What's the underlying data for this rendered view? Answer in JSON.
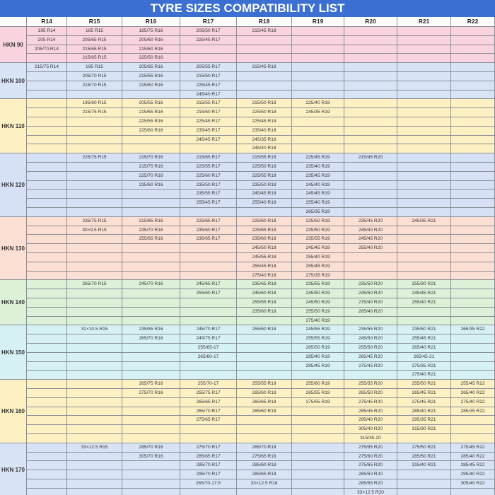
{
  "title": "TYRE SIZES COMPATIBILITY LIST",
  "columns": [
    "R14",
    "R15",
    "R16",
    "R17",
    "R18",
    "R19",
    "R20",
    "R21",
    "R22"
  ],
  "groups": [
    {
      "label": "HKN 90",
      "color": "#f9d4de",
      "columns": [
        [
          "195 R14",
          "205 R14",
          "205/70 R14"
        ],
        [
          "185 R15",
          "205/65 R15",
          "215/65 R15",
          "215/65 R15"
        ],
        [
          "185/75 R16",
          "205/60 R16",
          "215/60 R16",
          "225/50 R16"
        ],
        [
          "205/50 R17",
          "225/45 R17"
        ],
        [
          "215/45 R18"
        ],
        [],
        [],
        [],
        []
      ]
    },
    {
      "label": "HKN 100",
      "color": "#d8e4f5",
      "columns": [
        [
          "215/75 R14"
        ],
        [
          "195 R15",
          "205/70 R15",
          "215/70 R15"
        ],
        [
          "205/65 R16",
          "215/55 R16",
          "215/60 R16"
        ],
        [
          "205/55 R17",
          "215/50 R17",
          "225/45 R17",
          "245/40 R17"
        ],
        [
          "215/45 R18"
        ],
        [],
        [],
        [],
        []
      ]
    },
    {
      "label": "HKN 110",
      "color": "#fdf1c4",
      "columns": [
        [],
        [
          "195/60 R15",
          "215/75 R15"
        ],
        [
          "205/55 R16",
          "215/65 R16",
          "225/55 R16",
          "225/60 R16"
        ],
        [
          "215/55 R17",
          "215/60 R17",
          "225/45 R17",
          "235/45 R17",
          "245/45 R17"
        ],
        [
          "215/50 R18",
          "225/50 R18",
          "225/45 R18",
          "235/40 R18",
          "245/35 R18",
          "245/40 R18"
        ],
        [
          "225/40 R19",
          "245/35 R19"
        ],
        [],
        [],
        []
      ]
    },
    {
      "label": "HKN 120",
      "color": "#d7e1f5",
      "columns": [
        [],
        [
          "225/75 R15"
        ],
        [
          "215/70 R16",
          "215/75 R16",
          "225/70 R16",
          "235/60 R16"
        ],
        [
          "215/65 R17",
          "225/55 R17",
          "225/60 R17",
          "235/50 R17",
          "235/55 R17",
          "255/45 R17"
        ],
        [
          "215/55 R18",
          "225/50 R18",
          "225/55 R18",
          "235/50 R18",
          "245/45 R18",
          "255/40 R18"
        ],
        [
          "225/45 R19",
          "235/40 R19",
          "235/45 R19",
          "245/40 R19",
          "245/45 R19",
          "255/40 R19",
          "265/35 R19"
        ],
        [
          "215/45 R20"
        ],
        [],
        []
      ]
    },
    {
      "label": "HKN 130",
      "color": "#fcdfd3",
      "columns": [
        [],
        [
          "235/75 R15",
          "30×9.5 R15"
        ],
        [
          "215/85 R16",
          "235/70 R16",
          "255/65 R16"
        ],
        [
          "225/65 R17",
          "235/60 R17",
          "235/65 R17"
        ],
        [
          "225/60 R18",
          "225/65 R18",
          "235/60 R18",
          "245/50 R18",
          "245/55 R18",
          "255/45 R18",
          "275/40 R18"
        ],
        [
          "225/50 R19",
          "235/50 R19",
          "235/55 R19",
          "245/45 R19",
          "255/40 R19",
          "255/45 R19",
          "275/35 R19"
        ],
        [
          "235/45 R20",
          "245/40 R20",
          "245/45 R20",
          "255/40 R20"
        ],
        [
          "245/35 R21"
        ],
        []
      ]
    },
    {
      "label": "HKN 140",
      "color": "#ddf0d8",
      "columns": [
        [],
        [
          "265/70 R15"
        ],
        [
          "245/70 R16"
        ],
        [
          "245/65 R17",
          "255/60 R17"
        ],
        [
          "235/65 R18",
          "245/60 R18",
          "255/55 R18",
          "235/60 R18"
        ],
        [
          "235/55 R19",
          "245/50 R19",
          "245/50 R19",
          "255/50 R19",
          "275/40 R19"
        ],
        [
          "235/50 R20",
          "245/50 R20",
          "275/40 R20",
          "285/40 R20"
        ],
        [
          "255/30 R21",
          "245/45 R21",
          "255/40 R21"
        ],
        []
      ]
    },
    {
      "label": "HKN 150",
      "color": "#d5f1f4",
      "columns": [
        [],
        [
          "31×10.5 R15"
        ],
        [
          "235/85 R16",
          "265/70 R16"
        ],
        [
          "245/70 R17",
          "245/75 R17",
          "255/65-17",
          "265/60-17"
        ],
        [
          "255/60 R18"
        ],
        [
          "245/55 R19",
          "255/55 R19",
          "265/50 R19",
          "285/40 R19",
          "285/45 R19"
        ],
        [
          "235/55 R20",
          "245/50 R20",
          "255/50 R20",
          "265/45 R20",
          "275/45 R20"
        ],
        [
          "235/50 R21",
          "255/45 R21",
          "265/40 R21",
          "265/45-21",
          "275/35 R21",
          "275/40 R21"
        ],
        [
          "265/35 R22"
        ]
      ]
    },
    {
      "label": "HKN 160",
      "color": "#fdf1c4",
      "columns": [
        [],
        [],
        [
          "265/75 R16",
          "275/70 R16"
        ],
        [
          "255/70-17",
          "255/75 R17",
          "265/65 R17",
          "265/70 R17",
          "275/65 R17"
        ],
        [
          "255/55 R18",
          "265/60 R18",
          "265/65 R18",
          "285/60 R18"
        ],
        [
          "255/60 R19",
          "265/55 R19",
          "275/55 R19"
        ],
        [
          "255/55 R20",
          "265/50 R20",
          "275/45 R20",
          "285/45 R20",
          "295/40 R20",
          "305/40 R20",
          "315/35-20"
        ],
        [
          "255/50 R21",
          "265/45 R21",
          "275/45 R21",
          "285/40 R21",
          "295/35 R21",
          "315/30 R21"
        ],
        [
          "255/45 R22",
          "265/40 R22",
          "275/40 R22",
          "285/35 R22"
        ]
      ]
    },
    {
      "label": "HKN 170",
      "color": "#d8e4f5",
      "columns": [
        [],
        [
          "33×12.5 R15"
        ],
        [
          "285/70 R16",
          "305/70 R16"
        ],
        [
          "275/70 R17",
          "285/65 R17",
          "285/70 R17",
          "295/70 R17",
          "265/70-17.5"
        ],
        [
          "265/70 R18",
          "275/65 R18",
          "285/60 R18",
          "285/65 R18",
          "33×12.5 R18"
        ],
        [],
        [
          "275/55 R20",
          "275/60 R20",
          "275/65 R20",
          "285/50 R20",
          "285/55 R20",
          "33×12.5 R20"
        ],
        [
          "275/50 R21",
          "285/50 R21",
          "315/40 R21"
        ],
        [
          "275/45 R22",
          "285/40 R22",
          "285/45 R22",
          "295/40 R22",
          "305/40 R22"
        ]
      ]
    }
  ]
}
